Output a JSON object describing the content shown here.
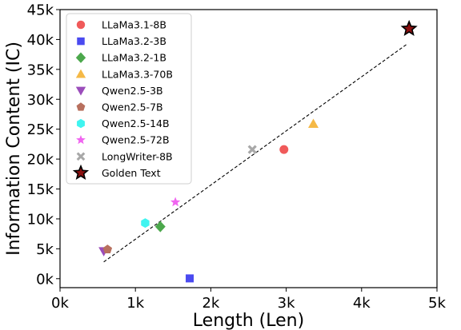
{
  "chart_data": {
    "type": "scatter",
    "xlabel": "Length (Len)",
    "ylabel": "Information Content (IC)",
    "xlim": [
      0,
      5000
    ],
    "ylim": [
      -1500,
      45000
    ],
    "x_ticks": [
      {
        "value": 0,
        "label": "0k"
      },
      {
        "value": 1000,
        "label": "1k"
      },
      {
        "value": 2000,
        "label": "2k"
      },
      {
        "value": 3000,
        "label": "3k"
      },
      {
        "value": 4000,
        "label": "4k"
      },
      {
        "value": 5000,
        "label": "5k"
      }
    ],
    "y_ticks": [
      {
        "value": 0,
        "label": "0k"
      },
      {
        "value": 5000,
        "label": "5k"
      },
      {
        "value": 10000,
        "label": "10k"
      },
      {
        "value": 15000,
        "label": "15k"
      },
      {
        "value": 20000,
        "label": "20k"
      },
      {
        "value": 25000,
        "label": "25k"
      },
      {
        "value": 30000,
        "label": "30k"
      },
      {
        "value": 35000,
        "label": "35k"
      },
      {
        "value": 40000,
        "label": "40k"
      },
      {
        "value": 45000,
        "label": "45k"
      }
    ],
    "grid": false,
    "legend_position": "upper-left",
    "series": [
      {
        "name": "LLaMa3.1-8B",
        "marker": "circle",
        "color": "#f05a5a",
        "points": [
          {
            "x": 2970,
            "y": 21600
          }
        ]
      },
      {
        "name": "LLaMa3.2-3B",
        "marker": "square",
        "color": "#4a4af0",
        "points": [
          {
            "x": 1720,
            "y": 50
          }
        ]
      },
      {
        "name": "LLaMa3.2-1B",
        "marker": "diamond",
        "color": "#4ca84c",
        "points": [
          {
            "x": 1330,
            "y": 8700
          }
        ]
      },
      {
        "name": "LLaMa3.3-70B",
        "marker": "triangle-up",
        "color": "#f5b946",
        "points": [
          {
            "x": 3360,
            "y": 25900
          }
        ]
      },
      {
        "name": "Qwen2.5-3B",
        "marker": "triangle-down",
        "color": "#9b4dbb",
        "points": [
          {
            "x": 580,
            "y": 4600
          }
        ]
      },
      {
        "name": "Qwen2.5-7B",
        "marker": "pentagon",
        "color": "#b8705e",
        "points": [
          {
            "x": 630,
            "y": 4900
          }
        ]
      },
      {
        "name": "Qwen2.5-14B",
        "marker": "hexagon",
        "color": "#3ff4f0",
        "points": [
          {
            "x": 1130,
            "y": 9300
          }
        ]
      },
      {
        "name": "Qwen2.5-72B",
        "marker": "star",
        "color": "#f065f0",
        "points": [
          {
            "x": 1530,
            "y": 12800
          }
        ]
      },
      {
        "name": "LongWriter-8B",
        "marker": "x",
        "color": "#a8a8a8",
        "points": [
          {
            "x": 2550,
            "y": 21600
          }
        ]
      },
      {
        "name": "Golden Text",
        "marker": "star-big",
        "color": "#8b1010",
        "edge": "#000000",
        "points": [
          {
            "x": 4630,
            "y": 41800
          }
        ]
      }
    ],
    "trend_line": {
      "style": "dashed",
      "color": "#000000",
      "from": {
        "x": 580,
        "y": 2800
      },
      "to": {
        "x": 4600,
        "y": 39200
      }
    }
  }
}
